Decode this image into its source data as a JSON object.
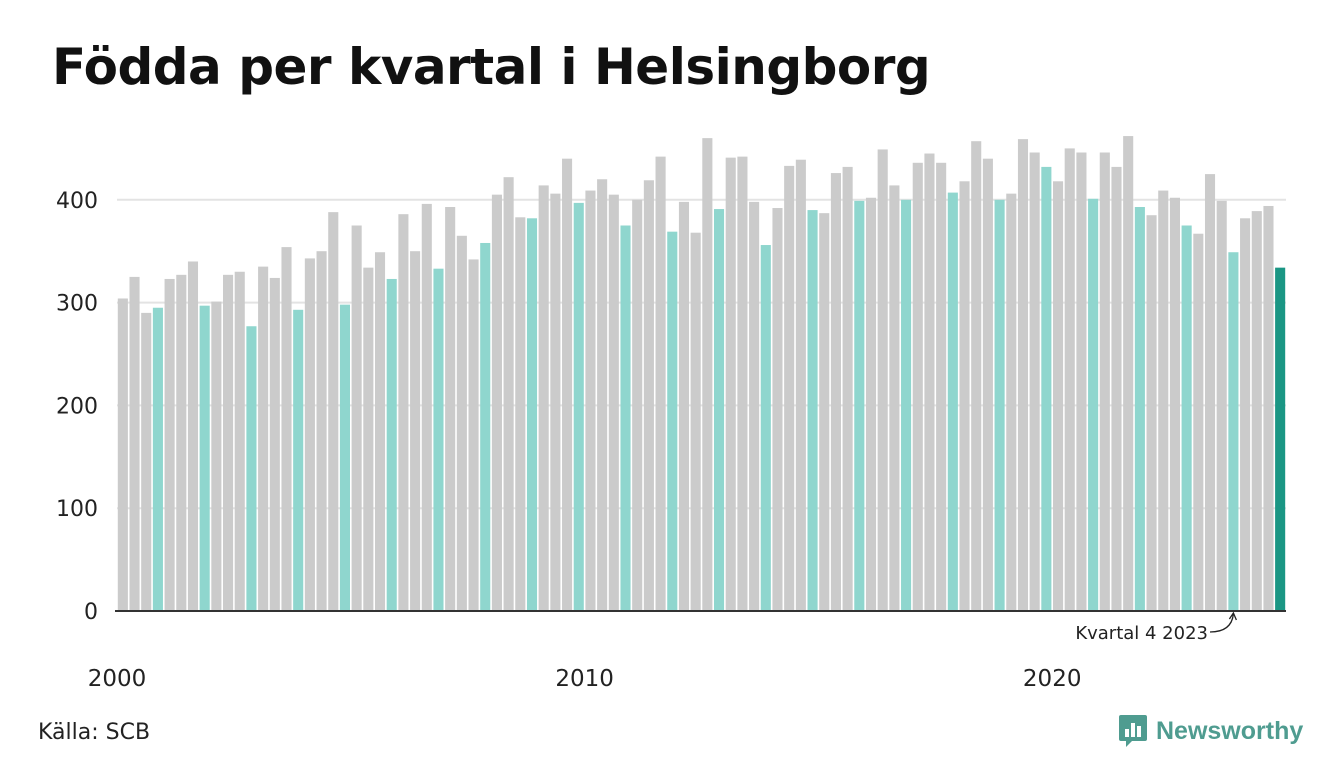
{
  "title": "Födda per kvartal i Helsingborg",
  "source": "Källa: SCB",
  "brand": "Newsworthy",
  "colors": {
    "bar_default": "#cbcbcb",
    "bar_q4": "#8fd6ce",
    "bar_latest": "#1a9684",
    "gridline": "#e3e3e3",
    "baseline": "#333333",
    "brand": "#4f9c90"
  },
  "chart_data": {
    "type": "bar",
    "title": "Födda per kvartal i Helsingborg",
    "xlabel": "",
    "ylabel": "",
    "ylim": [
      0,
      470
    ],
    "yticks": [
      0,
      100,
      200,
      300,
      400
    ],
    "grid": true,
    "xtick_labels": [
      {
        "label": "2000",
        "year": 2000
      },
      {
        "label": "2010",
        "year": 2010
      },
      {
        "label": "2020",
        "year": 2020
      }
    ],
    "highlight": "kvartal 4 (Q4) bars shown in teal; latest bar in dark teal",
    "annotation": {
      "text": "Kvartal 4 2023",
      "year": 2023,
      "quarter": 4
    },
    "start": {
      "year": 2000,
      "quarter": 1
    },
    "values": [
      304,
      325,
      290,
      295,
      323,
      327,
      340,
      297,
      301,
      327,
      330,
      277,
      335,
      324,
      354,
      293,
      343,
      350,
      388,
      298,
      375,
      334,
      349,
      323,
      386,
      350,
      396,
      333,
      393,
      365,
      342,
      358,
      405,
      422,
      383,
      382,
      414,
      406,
      440,
      397,
      409,
      420,
      405,
      375,
      400,
      419,
      442,
      369,
      398,
      368,
      460,
      391,
      441,
      442,
      398,
      356,
      392,
      433,
      439,
      390,
      387,
      426,
      432,
      399,
      402,
      449,
      414,
      400,
      436,
      445,
      436,
      407,
      418,
      457,
      440,
      400,
      406,
      459,
      446,
      432,
      418,
      450,
      446,
      401,
      446,
      432,
      462,
      393,
      385,
      409,
      402,
      375,
      367,
      425,
      399,
      349,
      382,
      389,
      394,
      334
    ]
  }
}
